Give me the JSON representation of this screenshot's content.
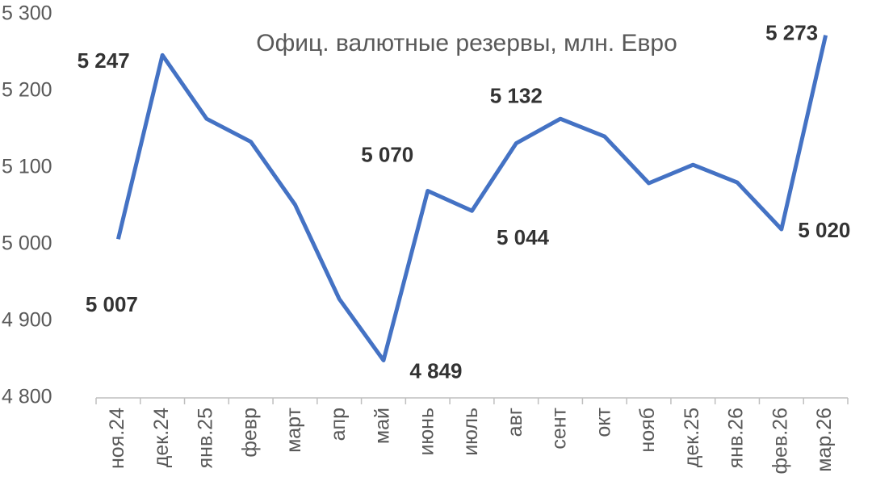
{
  "chart_data": {
    "type": "line",
    "title": "Офиц. валютные резервы, млн. Евро",
    "categories": [
      "ноя.24",
      "дек.24",
      "янв.25",
      "февр",
      "март",
      "апр",
      "май",
      "июнь",
      "июль",
      "авг",
      "сент",
      "окт",
      "нояб",
      "дек.25",
      "янв.26",
      "фев.26",
      "мар.26"
    ],
    "series": [
      {
        "name": "Офиц. валютные резервы",
        "color": "#4472c4",
        "values": [
          5007,
          5247,
          5164,
          5134,
          5052,
          4929,
          4849,
          5070,
          5044,
          5132,
          5164,
          5141,
          5080,
          5104,
          5081,
          5020,
          5273
        ],
        "value_labels": [
          "5 007",
          "5 247",
          null,
          null,
          null,
          null,
          "4 849",
          "5 070",
          "5 044",
          "5 132",
          null,
          null,
          null,
          null,
          null,
          "5 020",
          "5 273"
        ]
      }
    ],
    "ylim": [
      4800,
      5300
    ],
    "yticks": [
      {
        "value": 4800,
        "label": "4 800"
      },
      {
        "value": 4900,
        "label": "4 900"
      },
      {
        "value": 5000,
        "label": "5 000"
      },
      {
        "value": 5100,
        "label": "5 100"
      },
      {
        "value": 5200,
        "label": "5 200"
      },
      {
        "value": 5300,
        "label": "5 300"
      }
    ],
    "grid": false
  }
}
